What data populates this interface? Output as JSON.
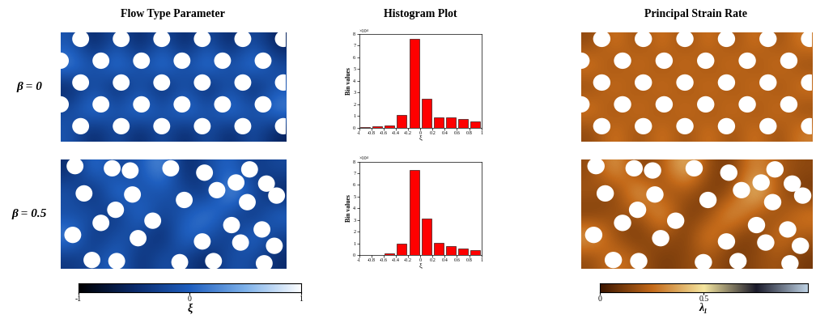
{
  "chart_data": {
    "type": "panel_grid",
    "column_titles": [
      "Flow Type Parameter",
      "Histogram Plot",
      "Principal Strain Rate"
    ],
    "colorbars": {
      "flow_type": {
        "label": "ξ",
        "range": [
          -1,
          1
        ],
        "ticks": [
          -1,
          0,
          1
        ]
      },
      "strain_rate": {
        "label": "λ₁",
        "range": [
          0,
          1
        ],
        "ticks": [
          0,
          0.5
        ]
      }
    },
    "rows": [
      {
        "label": "β = 0",
        "flow_type": {
          "type": "heatmap",
          "tick_labels": false,
          "xlim": [
            0,
            20
          ],
          "ylim": [
            10,
            0
          ],
          "cells": [
            [
              -0.1,
              -0.6,
              -0.1,
              -0.6,
              -0.1,
              -0.6,
              -0.1,
              -0.6,
              -0.1,
              -0.6
            ],
            [
              0.3,
              -0.2,
              0.3,
              -0.2,
              0.3,
              -0.2,
              0.3,
              -0.2,
              0.3,
              -0.2
            ],
            [
              -0.6,
              -0.1,
              -0.6,
              -0.1,
              -0.6,
              -0.1,
              -0.6,
              -0.1,
              -0.6,
              -0.1
            ],
            [
              -0.2,
              0.3,
              -0.2,
              0.3,
              -0.2,
              0.3,
              -0.2,
              0.3,
              -0.2,
              0.3
            ],
            [
              -0.1,
              -0.6,
              -0.1,
              -0.6,
              -0.1,
              -0.6,
              -0.1,
              -0.6,
              -0.1,
              -0.6
            ]
          ],
          "circle_radius": 0.75,
          "circles": [
            [
              1.8,
              0.6
            ],
            [
              5.4,
              0.6
            ],
            [
              9.0,
              0.6
            ],
            [
              12.6,
              0.6
            ],
            [
              16.2,
              0.6
            ],
            [
              19.8,
              0.6
            ],
            [
              0.0,
              2.6
            ],
            [
              3.6,
              2.6
            ],
            [
              7.2,
              2.6
            ],
            [
              10.8,
              2.6
            ],
            [
              14.4,
              2.6
            ],
            [
              18.0,
              2.6
            ],
            [
              1.8,
              4.6
            ],
            [
              5.4,
              4.6
            ],
            [
              9.0,
              4.6
            ],
            [
              12.6,
              4.6
            ],
            [
              16.2,
              4.6
            ],
            [
              19.8,
              4.6
            ],
            [
              0.0,
              6.6
            ],
            [
              3.6,
              6.6
            ],
            [
              7.2,
              6.6
            ],
            [
              10.8,
              6.6
            ],
            [
              14.4,
              6.6
            ],
            [
              18.0,
              6.6
            ],
            [
              1.8,
              8.6
            ],
            [
              5.4,
              8.6
            ],
            [
              9.0,
              8.6
            ],
            [
              12.6,
              8.6
            ],
            [
              16.2,
              8.6
            ],
            [
              19.8,
              8.6
            ]
          ]
        },
        "histogram": {
          "type": "histogram",
          "color": "#ff0000",
          "xlabel": "ξ",
          "ylabel": "Bin values",
          "multiplier_label": "×10⁴",
          "bins": [
            -1,
            -0.8,
            -0.6,
            -0.4,
            -0.2,
            0,
            0.2,
            0.4,
            0.6,
            0.8,
            1
          ],
          "counts": [
            200,
            800,
            2000,
            10500,
            76000,
            24500,
            9000,
            8500,
            7000,
            5500
          ],
          "xlim": [
            -1,
            1
          ],
          "ylim": [
            0,
            80000
          ],
          "xticks": [
            -1,
            -0.8,
            -0.6,
            -0.4,
            -0.2,
            0,
            0.2,
            0.4,
            0.6,
            0.8,
            1
          ],
          "yticks": [
            {
              "value": 0,
              "label": "0"
            },
            {
              "value": 10000,
              "label": "1"
            },
            {
              "value": 20000,
              "label": "2"
            },
            {
              "value": 30000,
              "label": "3"
            },
            {
              "value": 40000,
              "label": "4"
            },
            {
              "value": 50000,
              "label": "5"
            },
            {
              "value": 60000,
              "label": "6"
            },
            {
              "value": 70000,
              "label": "7"
            },
            {
              "value": 80000,
              "label": "8"
            }
          ]
        },
        "strain_rate": {
          "type": "heatmap",
          "tick_labels": false,
          "xlim": [
            0,
            20
          ],
          "ylim": [
            10,
            0
          ],
          "cells": [
            [
              0.15,
              0.3,
              0.15,
              0.3,
              0.15,
              0.3,
              0.15,
              0.3,
              0.15,
              0.3
            ],
            [
              0.3,
              0.15,
              0.3,
              0.15,
              0.3,
              0.15,
              0.3,
              0.15,
              0.3,
              0.15
            ],
            [
              0.15,
              0.3,
              0.15,
              0.3,
              0.15,
              0.3,
              0.15,
              0.3,
              0.15,
              0.3
            ],
            [
              0.3,
              0.15,
              0.3,
              0.15,
              0.3,
              0.15,
              0.3,
              0.15,
              0.3,
              0.15
            ],
            [
              0.15,
              0.3,
              0.15,
              0.3,
              0.15,
              0.3,
              0.15,
              0.3,
              0.15,
              0.3
            ]
          ],
          "circle_radius": 0.75,
          "circles": [
            [
              1.8,
              0.6
            ],
            [
              5.4,
              0.6
            ],
            [
              9.0,
              0.6
            ],
            [
              12.6,
              0.6
            ],
            [
              16.2,
              0.6
            ],
            [
              19.8,
              0.6
            ],
            [
              0.0,
              2.6
            ],
            [
              3.6,
              2.6
            ],
            [
              7.2,
              2.6
            ],
            [
              10.8,
              2.6
            ],
            [
              14.4,
              2.6
            ],
            [
              18.0,
              2.6
            ],
            [
              1.8,
              4.6
            ],
            [
              5.4,
              4.6
            ],
            [
              9.0,
              4.6
            ],
            [
              12.6,
              4.6
            ],
            [
              16.2,
              4.6
            ],
            [
              19.8,
              4.6
            ],
            [
              0.0,
              6.6
            ],
            [
              3.6,
              6.6
            ],
            [
              7.2,
              6.6
            ],
            [
              10.8,
              6.6
            ],
            [
              14.4,
              6.6
            ],
            [
              18.0,
              6.6
            ],
            [
              1.8,
              8.6
            ],
            [
              5.4,
              8.6
            ],
            [
              9.0,
              8.6
            ],
            [
              12.6,
              8.6
            ],
            [
              16.2,
              8.6
            ],
            [
              19.8,
              8.6
            ]
          ]
        }
      },
      {
        "label": "β = 0.5",
        "flow_type": {
          "type": "heatmap",
          "tick_labels": false,
          "xlim": [
            0,
            20
          ],
          "ylim": [
            10,
            0
          ],
          "cells": [
            [
              -0.5,
              0.2,
              -0.3,
              -0.1,
              0.4,
              -0.6,
              -0.2,
              0.1,
              -0.4,
              -0.2
            ],
            [
              -0.1,
              -0.6,
              0.3,
              -0.2,
              -0.1,
              -0.2,
              -0.5,
              0.5,
              -0.1,
              -0.6
            ],
            [
              -0.2,
              -0.1,
              -0.5,
              0.2,
              -0.3,
              -0.1,
              0.3,
              -0.2,
              -0.5,
              0.1
            ],
            [
              0.3,
              -0.5,
              -0.1,
              -0.2,
              -0.6,
              0.2,
              -0.1,
              -0.4,
              0.2,
              -0.3
            ],
            [
              -0.4,
              -0.2,
              0.1,
              -0.5,
              -0.1,
              -0.3,
              -0.6,
              -0.1,
              -0.2,
              -0.5
            ]
          ],
          "circle_radius": 0.75,
          "circles": [
            [
              1.3,
              0.6
            ],
            [
              4.6,
              0.8
            ],
            [
              6.2,
              1.0
            ],
            [
              9.8,
              0.8
            ],
            [
              12.8,
              1.2
            ],
            [
              16.8,
              0.9
            ],
            [
              18.3,
              2.2
            ],
            [
              15.6,
              2.1
            ],
            [
              13.9,
              2.8
            ],
            [
              2.1,
              3.1
            ],
            [
              6.4,
              3.2
            ],
            [
              4.9,
              4.6
            ],
            [
              11.0,
              3.7
            ],
            [
              16.6,
              3.9
            ],
            [
              19.2,
              3.3
            ],
            [
              3.6,
              5.8
            ],
            [
              8.2,
              5.6
            ],
            [
              15.2,
              6.0
            ],
            [
              17.9,
              6.4
            ],
            [
              1.1,
              6.9
            ],
            [
              6.9,
              7.2
            ],
            [
              12.6,
              7.5
            ],
            [
              16.0,
              7.6
            ],
            [
              19.0,
              7.9
            ],
            [
              2.8,
              9.2
            ],
            [
              5.0,
              9.3
            ],
            [
              10.6,
              9.4
            ],
            [
              13.6,
              9.3
            ],
            [
              18.1,
              9.5
            ]
          ]
        },
        "histogram": {
          "type": "histogram",
          "color": "#ff0000",
          "xlabel": "ξ",
          "ylabel": "Bin values",
          "multiplier_label": "×10⁴",
          "bins": [
            -1,
            -0.8,
            -0.6,
            -0.4,
            -0.2,
            0,
            0.2,
            0.4,
            0.6,
            0.8,
            1
          ],
          "counts": [
            100,
            300,
            1500,
            9500,
            73000,
            31000,
            10500,
            8000,
            6000,
            4500
          ],
          "xlim": [
            -1,
            1
          ],
          "ylim": [
            0,
            80000
          ],
          "xticks": [
            -1,
            -0.8,
            -0.6,
            -0.4,
            -0.2,
            0,
            0.2,
            0.4,
            0.6,
            0.8,
            1
          ],
          "yticks": [
            {
              "value": 0,
              "label": "0"
            },
            {
              "value": 10000,
              "label": "1"
            },
            {
              "value": 20000,
              "label": "2"
            },
            {
              "value": 30000,
              "label": "3"
            },
            {
              "value": 40000,
              "label": "4"
            },
            {
              "value": 50000,
              "label": "5"
            },
            {
              "value": 60000,
              "label": "6"
            },
            {
              "value": 70000,
              "label": "7"
            },
            {
              "value": 80000,
              "label": "8"
            }
          ]
        },
        "strain_rate": {
          "type": "heatmap",
          "tick_labels": false,
          "xlim": [
            0,
            20
          ],
          "ylim": [
            10,
            0
          ],
          "cells": [
            [
              0.15,
              0.4,
              0.1,
              0.2,
              0.45,
              0.15,
              0.1,
              0.35,
              0.2,
              0.15
            ],
            [
              0.2,
              0.1,
              0.45,
              0.15,
              0.2,
              0.1,
              0.15,
              0.5,
              0.2,
              0.1
            ],
            [
              0.1,
              0.2,
              0.15,
              0.4,
              0.1,
              0.15,
              0.4,
              0.2,
              0.15,
              0.3
            ],
            [
              0.4,
              0.15,
              0.1,
              0.2,
              0.1,
              0.35,
              0.15,
              0.1,
              0.3,
              0.2
            ],
            [
              0.15,
              0.3,
              0.2,
              0.1,
              0.15,
              0.2,
              0.1,
              0.15,
              0.2,
              0.1
            ]
          ],
          "circle_radius": 0.75,
          "circles": [
            [
              1.3,
              0.6
            ],
            [
              4.6,
              0.8
            ],
            [
              6.2,
              1.0
            ],
            [
              9.8,
              0.8
            ],
            [
              12.8,
              1.2
            ],
            [
              16.8,
              0.9
            ],
            [
              18.3,
              2.2
            ],
            [
              15.6,
              2.1
            ],
            [
              13.9,
              2.8
            ],
            [
              2.1,
              3.1
            ],
            [
              6.4,
              3.2
            ],
            [
              4.9,
              4.6
            ],
            [
              11.0,
              3.7
            ],
            [
              16.6,
              3.9
            ],
            [
              19.2,
              3.3
            ],
            [
              3.6,
              5.8
            ],
            [
              8.2,
              5.6
            ],
            [
              15.2,
              6.0
            ],
            [
              17.9,
              6.4
            ],
            [
              1.1,
              6.9
            ],
            [
              6.9,
              7.2
            ],
            [
              12.6,
              7.5
            ],
            [
              16.0,
              7.6
            ],
            [
              19.0,
              7.9
            ],
            [
              2.8,
              9.2
            ],
            [
              5.0,
              9.3
            ],
            [
              10.6,
              9.4
            ],
            [
              13.6,
              9.3
            ],
            [
              18.1,
              9.5
            ]
          ]
        }
      }
    ]
  }
}
